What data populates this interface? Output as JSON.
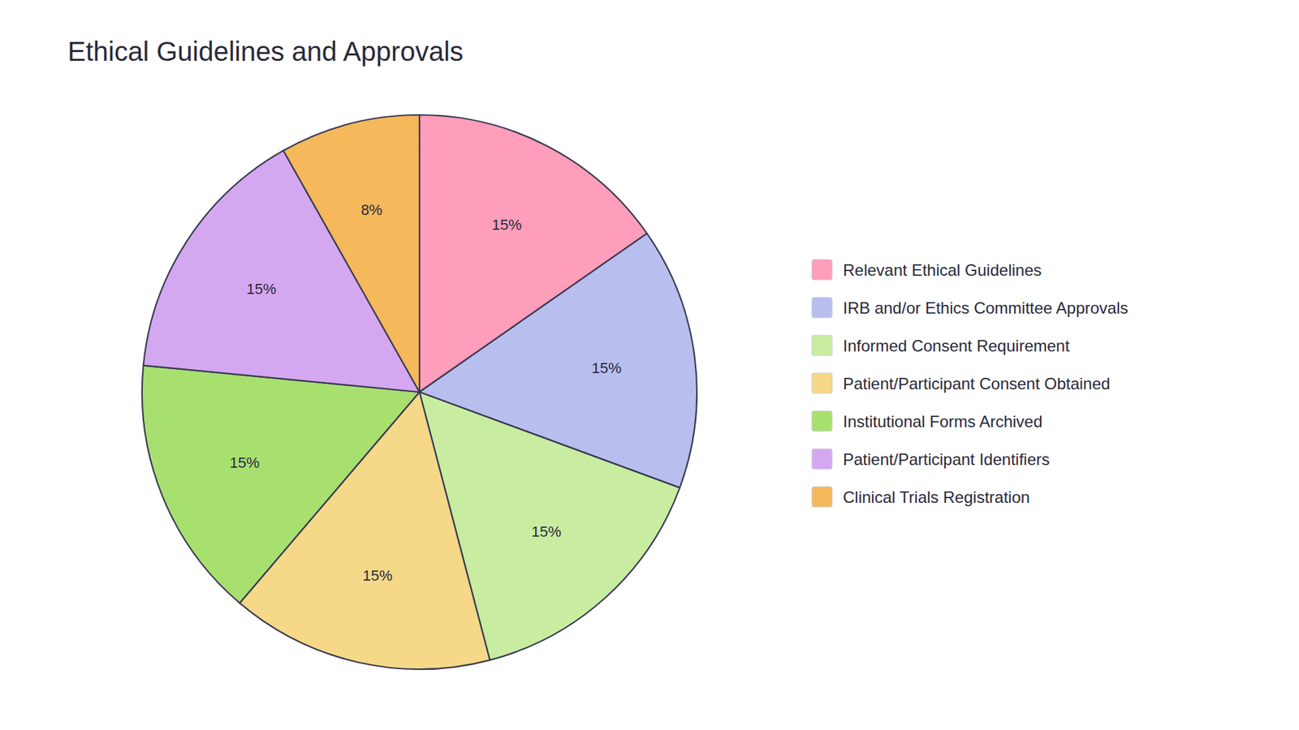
{
  "chart_data": {
    "type": "pie",
    "title": "Ethical Guidelines and Approvals",
    "categories": [
      "Relevant Ethical Guidelines",
      "IRB and/or Ethics Committee Approvals",
      "Informed Consent Requirement",
      "Patient/Participant Consent Obtained",
      "Institutional Forms Archived",
      "Patient/Participant Identifiers",
      "Clinical Trials Registration"
    ],
    "values": [
      15,
      15,
      15,
      15,
      15,
      15,
      8
    ],
    "value_labels": [
      "15%",
      "15%",
      "15%",
      "15%",
      "15%",
      "15%",
      "8%"
    ],
    "colors": [
      "#FF9EBA",
      "#B8BEEE",
      "#C8EDA0",
      "#F5D888",
      "#A8E070",
      "#D4A8F0",
      "#F5B85A"
    ],
    "data_labels": true,
    "legend": "right"
  }
}
